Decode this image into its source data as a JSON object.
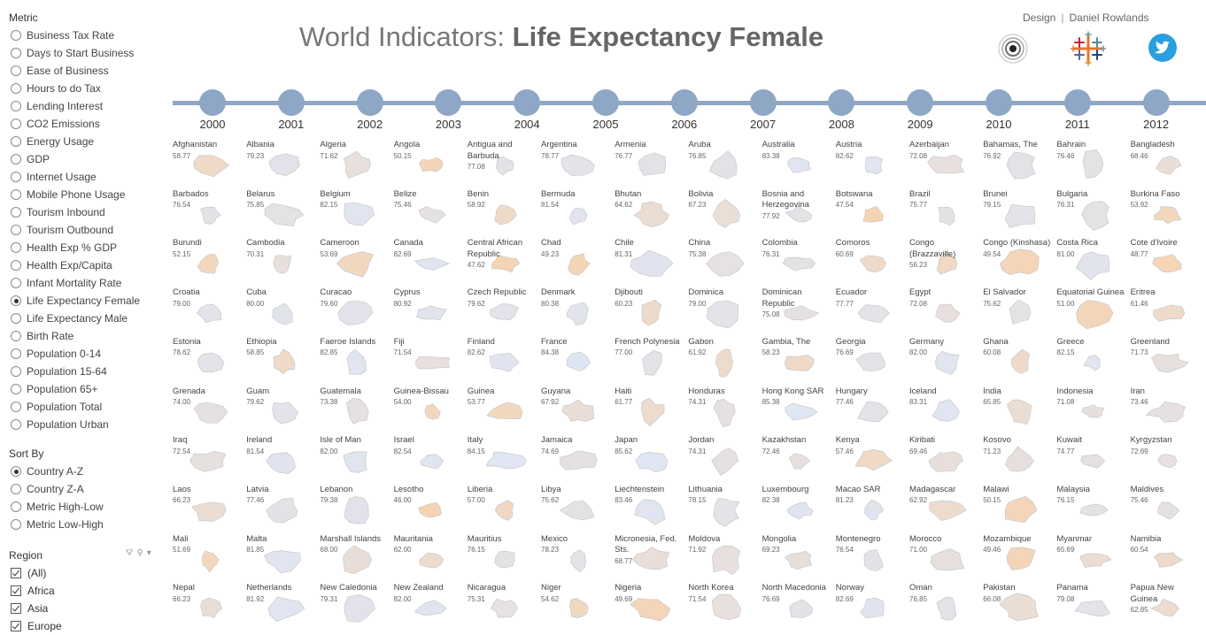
{
  "sidebar": {
    "metric_title": "Metric",
    "metrics": [
      {
        "label": "Business Tax Rate",
        "selected": false
      },
      {
        "label": "Days to Start Business",
        "selected": false
      },
      {
        "label": "Ease of Business",
        "selected": false
      },
      {
        "label": "Hours to do Tax",
        "selected": false
      },
      {
        "label": "Lending Interest",
        "selected": false
      },
      {
        "label": "CO2 Emissions",
        "selected": false
      },
      {
        "label": "Energy Usage",
        "selected": false
      },
      {
        "label": "GDP",
        "selected": false
      },
      {
        "label": "Internet Usage",
        "selected": false
      },
      {
        "label": "Mobile Phone Usage",
        "selected": false
      },
      {
        "label": "Tourism Inbound",
        "selected": false
      },
      {
        "label": "Tourism Outbound",
        "selected": false
      },
      {
        "label": "Health Exp % GDP",
        "selected": false
      },
      {
        "label": "Health Exp/Capita",
        "selected": false
      },
      {
        "label": "Infant Mortality Rate",
        "selected": false
      },
      {
        "label": "Life Expectancy Female",
        "selected": true
      },
      {
        "label": "Life Expectancy Male",
        "selected": false
      },
      {
        "label": "Birth Rate",
        "selected": false
      },
      {
        "label": "Population 0-14",
        "selected": false
      },
      {
        "label": "Population 15-64",
        "selected": false
      },
      {
        "label": "Population 65+",
        "selected": false
      },
      {
        "label": "Population Total",
        "selected": false
      },
      {
        "label": "Population Urban",
        "selected": false
      }
    ],
    "sort_title": "Sort By",
    "sorts": [
      {
        "label": "Country A-Z",
        "selected": true
      },
      {
        "label": "Country Z-A",
        "selected": false
      },
      {
        "label": "Metric High-Low",
        "selected": false
      },
      {
        "label": "Metric Low-High",
        "selected": false
      }
    ],
    "region_title": "Region",
    "regions": [
      {
        "label": "(All)",
        "checked": true
      },
      {
        "label": "Africa",
        "checked": true
      },
      {
        "label": "Asia",
        "checked": true
      },
      {
        "label": "Europe",
        "checked": true
      }
    ]
  },
  "header": {
    "title_prefix": "World Indicators: ",
    "title_metric": "Life Expectancy Female",
    "credit_design": "Design",
    "credit_author": "Daniel Rowlands",
    "icons": [
      "target-logo-icon",
      "tableau-logo-icon",
      "twitter-icon"
    ]
  },
  "colors": {
    "timeline": "#8ea7c6",
    "high": "#dfe6f4",
    "low": "#f7d3b0",
    "twitter": "#2a9fe0"
  },
  "timeline": {
    "years": [
      "2000",
      "2001",
      "2002",
      "2003",
      "2004",
      "2005",
      "2006",
      "2007",
      "2008",
      "2009",
      "2010",
      "2011",
      "2012"
    ]
  },
  "countries": [
    {
      "name": "Afghanistan",
      "value": "58.77"
    },
    {
      "name": "Albania",
      "value": "79.23"
    },
    {
      "name": "Algeria",
      "value": "71.62"
    },
    {
      "name": "Angola",
      "value": "50.15"
    },
    {
      "name": "Antigua and Barbuda",
      "value": "77.08"
    },
    {
      "name": "Argentina",
      "value": "78.77"
    },
    {
      "name": "Armenia",
      "value": "76.77"
    },
    {
      "name": "Aruba",
      "value": "76.85"
    },
    {
      "name": "Australia",
      "value": "83.38"
    },
    {
      "name": "Austria",
      "value": "82.62"
    },
    {
      "name": "Azerbaijan",
      "value": "72.08"
    },
    {
      "name": "Bahamas, The",
      "value": "76.92"
    },
    {
      "name": "Bahrain",
      "value": "76.46"
    },
    {
      "name": "Bangladesh",
      "value": "68.46"
    },
    {
      "name": "Barbados",
      "value": "76.54"
    },
    {
      "name": "Belarus",
      "value": "75.85"
    },
    {
      "name": "Belgium",
      "value": "82.15"
    },
    {
      "name": "Belize",
      "value": "75.46"
    },
    {
      "name": "Benin",
      "value": "58.92"
    },
    {
      "name": "Bermuda",
      "value": "81.54"
    },
    {
      "name": "Bhutan",
      "value": "64.62"
    },
    {
      "name": "Bolivia",
      "value": "67.23"
    },
    {
      "name": "Bosnia and Herzegovina",
      "value": "77.92"
    },
    {
      "name": "Botswana",
      "value": "47.54"
    },
    {
      "name": "Brazil",
      "value": "75.77"
    },
    {
      "name": "Brunei",
      "value": "79.15"
    },
    {
      "name": "Bulgaria",
      "value": "76.31"
    },
    {
      "name": "Burkina Faso",
      "value": "53.92"
    },
    {
      "name": "Burundi",
      "value": "52.15"
    },
    {
      "name": "Cambodia",
      "value": "70.31"
    },
    {
      "name": "Cameroon",
      "value": "53.69"
    },
    {
      "name": "Canada",
      "value": "82.69"
    },
    {
      "name": "Central African Republic",
      "value": "47.62"
    },
    {
      "name": "Chad",
      "value": "49.23"
    },
    {
      "name": "Chile",
      "value": "81.31"
    },
    {
      "name": "China",
      "value": "75.38"
    },
    {
      "name": "Colombia",
      "value": "76.31"
    },
    {
      "name": "Comoros",
      "value": "60.69"
    },
    {
      "name": "Congo (Brazzaville)",
      "value": "56.23"
    },
    {
      "name": "Congo (Kinshasa)",
      "value": "49.54"
    },
    {
      "name": "Costa Rica",
      "value": "81.00"
    },
    {
      "name": "Cote d'Ivoire",
      "value": "48.77"
    },
    {
      "name": "Croatia",
      "value": "79.00"
    },
    {
      "name": "Cuba",
      "value": "80.00"
    },
    {
      "name": "Curacao",
      "value": "79.60"
    },
    {
      "name": "Cyprus",
      "value": "80.92"
    },
    {
      "name": "Czech Republic",
      "value": "79.62"
    },
    {
      "name": "Denmark",
      "value": "80.38"
    },
    {
      "name": "Djibouti",
      "value": "60.23"
    },
    {
      "name": "Dominica",
      "value": "79.00"
    },
    {
      "name": "Dominican Republic",
      "value": "75.08"
    },
    {
      "name": "Ecuador",
      "value": "77.77"
    },
    {
      "name": "Egypt",
      "value": "72.08"
    },
    {
      "name": "El Salvador",
      "value": "75.62"
    },
    {
      "name": "Equatorial Guinea",
      "value": "51.00"
    },
    {
      "name": "Eritrea",
      "value": "61.46"
    },
    {
      "name": "Estonia",
      "value": "78.62"
    },
    {
      "name": "Ethiopia",
      "value": "58.85"
    },
    {
      "name": "Faeroe Islands",
      "value": "82.85"
    },
    {
      "name": "Fiji",
      "value": "71.54"
    },
    {
      "name": "Finland",
      "value": "82.62"
    },
    {
      "name": "France",
      "value": "84.38"
    },
    {
      "name": "French Polynesia",
      "value": "77.00"
    },
    {
      "name": "Gabon",
      "value": "61.92"
    },
    {
      "name": "Gambia, The",
      "value": "58.23"
    },
    {
      "name": "Georgia",
      "value": "76.69"
    },
    {
      "name": "Germany",
      "value": "82.00"
    },
    {
      "name": "Ghana",
      "value": "60.08"
    },
    {
      "name": "Greece",
      "value": "82.15"
    },
    {
      "name": "Greenland",
      "value": "71.73"
    },
    {
      "name": "Grenada",
      "value": "74.00"
    },
    {
      "name": "Guam",
      "value": "79.62"
    },
    {
      "name": "Guatemala",
      "value": "73.38"
    },
    {
      "name": "Guinea-Bissau",
      "value": "54.00"
    },
    {
      "name": "Guinea",
      "value": "53.77"
    },
    {
      "name": "Guyana",
      "value": "67.92"
    },
    {
      "name": "Haiti",
      "value": "61.77"
    },
    {
      "name": "Honduras",
      "value": "74.31"
    },
    {
      "name": "Hong Kong SAR",
      "value": "85.38"
    },
    {
      "name": "Hungary",
      "value": "77.46"
    },
    {
      "name": "Iceland",
      "value": "83.31"
    },
    {
      "name": "India",
      "value": "65.85"
    },
    {
      "name": "Indonesia",
      "value": "71.08"
    },
    {
      "name": "Iran",
      "value": "73.46"
    },
    {
      "name": "Iraq",
      "value": "72.54"
    },
    {
      "name": "Ireland",
      "value": "81.54"
    },
    {
      "name": "Isle of Man",
      "value": "82.00"
    },
    {
      "name": "Israel",
      "value": "82.54"
    },
    {
      "name": "Italy",
      "value": "84.15"
    },
    {
      "name": "Jamaica",
      "value": "74.69"
    },
    {
      "name": "Japan",
      "value": "85.62"
    },
    {
      "name": "Jordan",
      "value": "74.31"
    },
    {
      "name": "Kazakhstan",
      "value": "72.46"
    },
    {
      "name": "Kenya",
      "value": "57.46"
    },
    {
      "name": "Kiribati",
      "value": "69.46"
    },
    {
      "name": "Kosovo",
      "value": "71.23"
    },
    {
      "name": "Kuwait",
      "value": "74.77"
    },
    {
      "name": "Kyrgyzstan",
      "value": "72.69"
    },
    {
      "name": "Laos",
      "value": "66.23"
    },
    {
      "name": "Latvia",
      "value": "77.46"
    },
    {
      "name": "Lebanon",
      "value": "79.38"
    },
    {
      "name": "Lesotho",
      "value": "46.00"
    },
    {
      "name": "Liberia",
      "value": "57.00"
    },
    {
      "name": "Libya",
      "value": "75.62"
    },
    {
      "name": "Liechtenstein",
      "value": "83.46"
    },
    {
      "name": "Lithuania",
      "value": "78.15"
    },
    {
      "name": "Luxembourg",
      "value": "82.38"
    },
    {
      "name": "Macao SAR",
      "value": "81.23"
    },
    {
      "name": "Madagascar",
      "value": "62.92"
    },
    {
      "name": "Malawi",
      "value": "50.15"
    },
    {
      "name": "Malaysia",
      "value": "76.15"
    },
    {
      "name": "Maldives",
      "value": "75.46"
    },
    {
      "name": "Mali",
      "value": "51.69"
    },
    {
      "name": "Malta",
      "value": "81.85"
    },
    {
      "name": "Marshall Islands",
      "value": "68.00"
    },
    {
      "name": "Mauritania",
      "value": "62.00"
    },
    {
      "name": "Mauritius",
      "value": "76.15"
    },
    {
      "name": "Mexico",
      "value": "78.23"
    },
    {
      "name": "Micronesia, Fed. Sts.",
      "value": "68.77"
    },
    {
      "name": "Moldova",
      "value": "71.92"
    },
    {
      "name": "Mongolia",
      "value": "69.23"
    },
    {
      "name": "Montenegro",
      "value": "76.54"
    },
    {
      "name": "Morocco",
      "value": "71.00"
    },
    {
      "name": "Mozambique",
      "value": "49.46"
    },
    {
      "name": "Myanmar",
      "value": "65.69"
    },
    {
      "name": "Namibia",
      "value": "60.54"
    },
    {
      "name": "Nepal",
      "value": "66.23"
    },
    {
      "name": "Netherlands",
      "value": "81.92"
    },
    {
      "name": "New Caledonia",
      "value": "79.31"
    },
    {
      "name": "New Zealand",
      "value": "82.00"
    },
    {
      "name": "Nicaragua",
      "value": "75.31"
    },
    {
      "name": "Niger",
      "value": "54.62"
    },
    {
      "name": "Nigeria",
      "value": "49.69"
    },
    {
      "name": "North Korea",
      "value": "71.54"
    },
    {
      "name": "North Macedonia",
      "value": "76.69"
    },
    {
      "name": "Norway",
      "value": "82.69"
    },
    {
      "name": "Oman",
      "value": "76.85"
    },
    {
      "name": "Pakistan",
      "value": "66.08"
    },
    {
      "name": "Panama",
      "value": "79.08"
    },
    {
      "name": "Papua New Guinea",
      "value": "62.85"
    }
  ]
}
